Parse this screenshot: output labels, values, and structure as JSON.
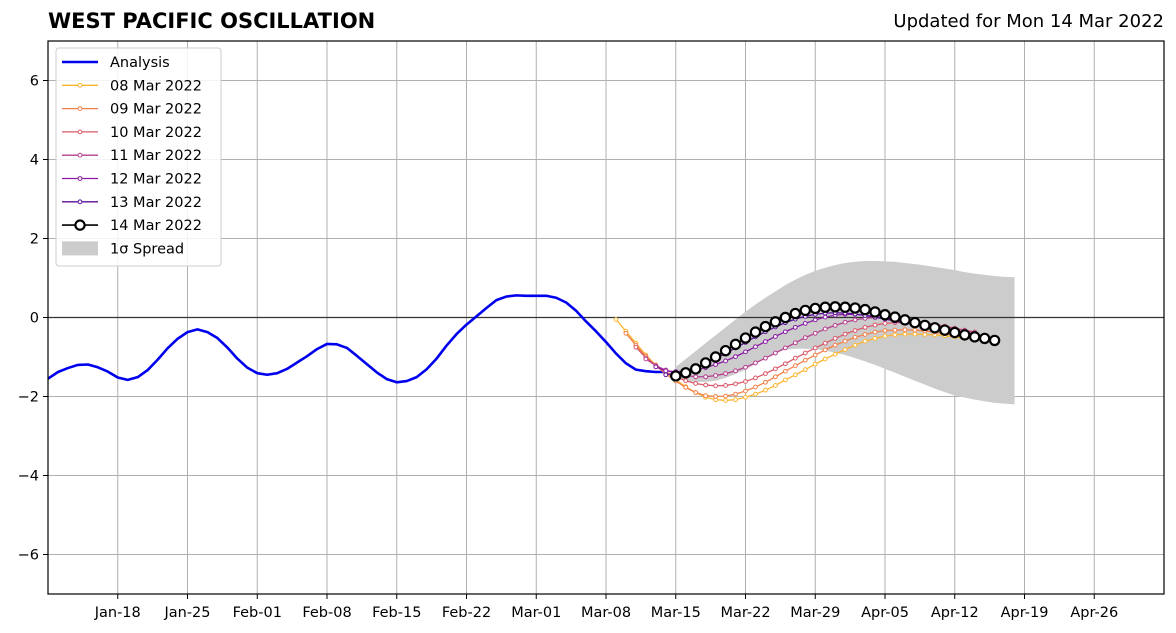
{
  "chart_data": {
    "type": "line",
    "title": "WEST PACIFIC OSCILLATION",
    "subtitle": "Updated for Mon 14 Mar 2022",
    "xlabel": "",
    "ylabel": "",
    "ylim": [
      -7,
      7
    ],
    "yticks": [
      -6,
      -4,
      -2,
      0,
      2,
      4,
      6
    ],
    "ytick_labels": [
      "−6",
      "−4",
      "−2",
      "0",
      "2",
      "4",
      "6"
    ],
    "x_range": [
      "2022-01-11",
      "2022-05-03"
    ],
    "x_ticks": [
      "2022-01-18",
      "2022-01-25",
      "2022-02-01",
      "2022-02-08",
      "2022-02-15",
      "2022-02-22",
      "2022-03-01",
      "2022-03-08",
      "2022-03-15",
      "2022-03-22",
      "2022-03-29",
      "2022-04-05",
      "2022-04-12",
      "2022-04-19",
      "2022-04-26"
    ],
    "x_tick_labels": [
      "Jan-18",
      "Jan-25",
      "Feb-01",
      "Feb-08",
      "Feb-15",
      "Feb-22",
      "Mar-01",
      "Mar-08",
      "Mar-15",
      "Mar-22",
      "Mar-29",
      "Apr-05",
      "Apr-12",
      "Apr-19",
      "Apr-26"
    ],
    "grid": true,
    "legend_position": "top-left",
    "analysis": {
      "name": "Analysis",
      "color": "#0000ee",
      "x": [
        "2022-01-11",
        "2022-01-12",
        "2022-01-13",
        "2022-01-14",
        "2022-01-15",
        "2022-01-16",
        "2022-01-17",
        "2022-01-18",
        "2022-01-19",
        "2022-01-20",
        "2022-01-21",
        "2022-01-22",
        "2022-01-23",
        "2022-01-24",
        "2022-01-25",
        "2022-01-26",
        "2022-01-27",
        "2022-01-28",
        "2022-01-29",
        "2022-01-30",
        "2022-01-31",
        "2022-02-01",
        "2022-02-02",
        "2022-02-03",
        "2022-02-04",
        "2022-02-05",
        "2022-02-06",
        "2022-02-07",
        "2022-02-08",
        "2022-02-09",
        "2022-02-10",
        "2022-02-11",
        "2022-02-12",
        "2022-02-13",
        "2022-02-14",
        "2022-02-15",
        "2022-02-16",
        "2022-02-17",
        "2022-02-18",
        "2022-02-19",
        "2022-02-20",
        "2022-02-21",
        "2022-02-22",
        "2022-02-23",
        "2022-02-24",
        "2022-02-25",
        "2022-02-26",
        "2022-02-27",
        "2022-02-28",
        "2022-03-01",
        "2022-03-02",
        "2022-03-03",
        "2022-03-04",
        "2022-03-05",
        "2022-03-06",
        "2022-03-07",
        "2022-03-08",
        "2022-03-09",
        "2022-03-10",
        "2022-03-11",
        "2022-03-12",
        "2022-03-13",
        "2022-03-14"
      ],
      "y": [
        -1.55,
        -1.38,
        -1.28,
        -1.2,
        -1.19,
        -1.26,
        -1.37,
        -1.52,
        -1.58,
        -1.51,
        -1.33,
        -1.07,
        -0.78,
        -0.54,
        -0.37,
        -0.3,
        -0.37,
        -0.52,
        -0.76,
        -1.04,
        -1.27,
        -1.41,
        -1.45,
        -1.41,
        -1.3,
        -1.14,
        -0.98,
        -0.8,
        -0.67,
        -0.68,
        -0.77,
        -0.97,
        -1.18,
        -1.39,
        -1.56,
        -1.64,
        -1.61,
        -1.51,
        -1.31,
        -1.04,
        -0.71,
        -0.42,
        -0.18,
        0.03,
        0.24,
        0.44,
        0.53,
        0.56,
        0.55,
        0.55,
        0.55,
        0.5,
        0.38,
        0.17,
        -0.1,
        -0.35,
        -0.62,
        -0.91,
        -1.16,
        -1.32,
        -1.36,
        -1.38,
        -1.38
      ]
    },
    "forecasts": [
      {
        "name": "08 Mar 2022",
        "color": "#fcb531",
        "start": "2022-03-09",
        "y": [
          -0.05,
          -0.35,
          -0.65,
          -0.95,
          -1.2,
          -1.4,
          -1.58,
          -1.75,
          -1.9,
          -2.02,
          -2.08,
          -2.1,
          -2.08,
          -2.02,
          -1.94,
          -1.84,
          -1.72,
          -1.58,
          -1.45,
          -1.32,
          -1.18,
          -1.05,
          -0.93,
          -0.81,
          -0.7,
          -0.6,
          -0.53,
          -0.47,
          -0.44,
          -0.42,
          -0.42,
          -0.43,
          -0.44,
          -0.46,
          -0.49,
          -0.53
        ]
      },
      {
        "name": "09 Mar 2022",
        "color": "#f3814a",
        "start": "2022-03-10",
        "y": [
          -0.4,
          -0.7,
          -0.98,
          -1.22,
          -1.43,
          -1.61,
          -1.77,
          -1.9,
          -1.98,
          -2.0,
          -1.99,
          -1.94,
          -1.86,
          -1.76,
          -1.64,
          -1.5,
          -1.36,
          -1.22,
          -1.08,
          -0.95,
          -0.82,
          -0.7,
          -0.6,
          -0.5,
          -0.43,
          -0.37,
          -0.33,
          -0.32,
          -0.31,
          -0.32,
          -0.34,
          -0.37,
          -0.41,
          -0.45,
          -0.49
        ]
      },
      {
        "name": "10 Mar 2022",
        "color": "#da5a6a",
        "start": "2022-03-11",
        "y": [
          -0.75,
          -1.02,
          -1.22,
          -1.38,
          -1.5,
          -1.6,
          -1.67,
          -1.71,
          -1.73,
          -1.72,
          -1.68,
          -1.62,
          -1.53,
          -1.42,
          -1.3,
          -1.17,
          -1.03,
          -0.9,
          -0.77,
          -0.65,
          -0.53,
          -0.42,
          -0.33,
          -0.25,
          -0.19,
          -0.15,
          -0.13,
          -0.12,
          -0.13,
          -0.15,
          -0.18,
          -0.22,
          -0.27,
          -0.32,
          -0.37
        ]
      },
      {
        "name": "11 Mar 2022",
        "color": "#b63f8f",
        "start": "2022-03-12",
        "y": [
          -1.05,
          -1.22,
          -1.33,
          -1.42,
          -1.47,
          -1.5,
          -1.5,
          -1.47,
          -1.42,
          -1.35,
          -1.26,
          -1.15,
          -1.03,
          -0.9,
          -0.77,
          -0.64,
          -0.51,
          -0.4,
          -0.29,
          -0.2,
          -0.12,
          -0.06,
          -0.02,
          0.0,
          0.0,
          -0.02,
          -0.05,
          -0.09,
          -0.13,
          -0.18,
          -0.23,
          -0.28,
          -0.33,
          -0.38
        ]
      },
      {
        "name": "12 Mar 2022",
        "color": "#8a1ca3",
        "start": "2022-03-13",
        "y": [
          -1.25,
          -1.35,
          -1.37,
          -1.36,
          -1.33,
          -1.27,
          -1.19,
          -1.1,
          -0.99,
          -0.87,
          -0.74,
          -0.61,
          -0.48,
          -0.36,
          -0.25,
          -0.15,
          -0.06,
          0.01,
          0.06,
          0.08,
          0.08,
          0.06,
          0.02,
          -0.03,
          -0.08,
          -0.13,
          -0.18,
          -0.23,
          -0.27,
          -0.31,
          -0.35,
          -0.39,
          -0.43
        ]
      },
      {
        "name": "13 Mar 2022",
        "color": "#5a0f9a",
        "start": "2022-03-14",
        "y": [
          -1.45,
          -1.42,
          -1.35,
          -1.27,
          -1.16,
          -1.04,
          -0.91,
          -0.77,
          -0.63,
          -0.49,
          -0.36,
          -0.24,
          -0.13,
          -0.04,
          0.03,
          0.08,
          0.11,
          0.12,
          0.11,
          0.09,
          0.05,
          0.01,
          -0.04,
          -0.09,
          -0.14,
          -0.18,
          -0.22,
          -0.26,
          -0.3,
          -0.34,
          -0.38,
          -0.42
        ]
      },
      {
        "name": "14 Mar 2022",
        "color": "#000000",
        "start": "2022-03-15",
        "y": [
          -1.48,
          -1.4,
          -1.3,
          -1.15,
          -1.0,
          -0.84,
          -0.68,
          -0.52,
          -0.37,
          -0.23,
          -0.11,
          0.0,
          0.1,
          0.18,
          0.23,
          0.26,
          0.27,
          0.26,
          0.24,
          0.2,
          0.14,
          0.07,
          0.01,
          -0.06,
          -0.13,
          -0.2,
          -0.26,
          -0.32,
          -0.38,
          -0.44,
          -0.49,
          -0.53,
          -0.58
        ]
      }
    ],
    "spread": {
      "name": "1σ Spread",
      "color": "#cccccc",
      "start": "2022-03-15",
      "upper": [
        -1.25,
        -1.05,
        -0.85,
        -0.65,
        -0.45,
        -0.25,
        -0.05,
        0.15,
        0.33,
        0.5,
        0.66,
        0.82,
        0.96,
        1.08,
        1.18,
        1.26,
        1.33,
        1.38,
        1.41,
        1.43,
        1.43,
        1.42,
        1.41,
        1.38,
        1.35,
        1.32,
        1.28,
        1.24,
        1.2,
        1.15,
        1.11,
        1.08,
        1.05,
        1.03,
        1.02
      ],
      "lower": [
        -1.55,
        -1.6,
        -1.63,
        -1.63,
        -1.6,
        -1.53,
        -1.43,
        -1.32,
        -1.18,
        -1.04,
        -0.9,
        -0.81,
        -0.79,
        -0.79,
        -0.8,
        -0.84,
        -0.89,
        -0.95,
        -1.03,
        -1.11,
        -1.2,
        -1.3,
        -1.4,
        -1.5,
        -1.6,
        -1.7,
        -1.8,
        -1.89,
        -1.97,
        -2.03,
        -2.08,
        -2.12,
        -2.16,
        -2.18,
        -2.2
      ]
    }
  }
}
